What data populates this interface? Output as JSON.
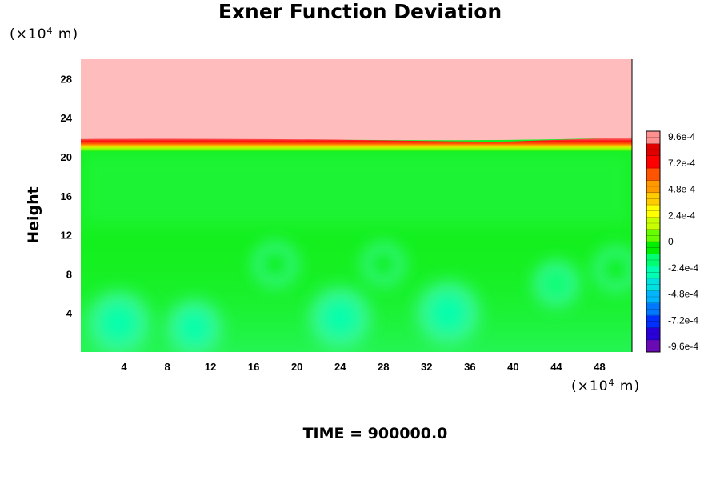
{
  "chart_data": {
    "type": "heatmap",
    "title": "Exner Function Deviation",
    "ylabel": "Height",
    "x_unit": {
      "prefix": "(×10",
      "exp": "4",
      "suffix": " m)"
    },
    "y_unit": {
      "prefix": "(×10",
      "exp": "4",
      "suffix": " m)"
    },
    "xlim": [
      0,
      51
    ],
    "ylim": [
      0,
      30
    ],
    "xticks": [
      "4",
      "8",
      "12",
      "16",
      "20",
      "24",
      "28",
      "32",
      "36",
      "40",
      "44",
      "48"
    ],
    "yticks": [
      "4",
      "8",
      "12",
      "16",
      "20",
      "24",
      "28"
    ],
    "colorbar": {
      "range": [
        -0.00096,
        0.00096
      ],
      "tick_labels": [
        "9.6e-4",
        "7.2e-4",
        "4.8e-4",
        "2.4e-4",
        "0",
        "-2.4e-4",
        "-4.8e-4",
        "-7.2e-4",
        "-9.6e-4"
      ],
      "colors": [
        "#6a0ab4",
        "#2a00d8",
        "#0030ff",
        "#0078ff",
        "#00b4ff",
        "#00e0e0",
        "#00ffb0",
        "#00ff70",
        "#00ee00",
        "#66ff00",
        "#c8ff00",
        "#ffff00",
        "#ffcc00",
        "#ff9900",
        "#ff5500",
        "#ff0000",
        "#e00000",
        "#ff9090"
      ]
    },
    "field": {
      "background": "#14f01e",
      "upper_layer": {
        "from_height": 21.5,
        "to_height": 30,
        "value": 0.00096
      },
      "transition_height": 21.5,
      "features": [
        {
          "x": 3.5,
          "y": 3.0,
          "value": -0.0003
        },
        {
          "x": 10.5,
          "y": 2.5,
          "value": -0.00022
        },
        {
          "x": 24.0,
          "y": 3.5,
          "value": -0.00028
        },
        {
          "x": 34.0,
          "y": 4.0,
          "value": -0.0003
        },
        {
          "x": 44.0,
          "y": 7.0,
          "value": -0.00012
        },
        {
          "x": 49.5,
          "y": 8.5,
          "value": -0.0001
        },
        {
          "x": 18.0,
          "y": 9.0,
          "value": -0.0001
        },
        {
          "x": 28.0,
          "y": 9.0,
          "value": -8e-05
        }
      ]
    }
  },
  "footer": {
    "time_label": "TIME = 900000.0"
  }
}
